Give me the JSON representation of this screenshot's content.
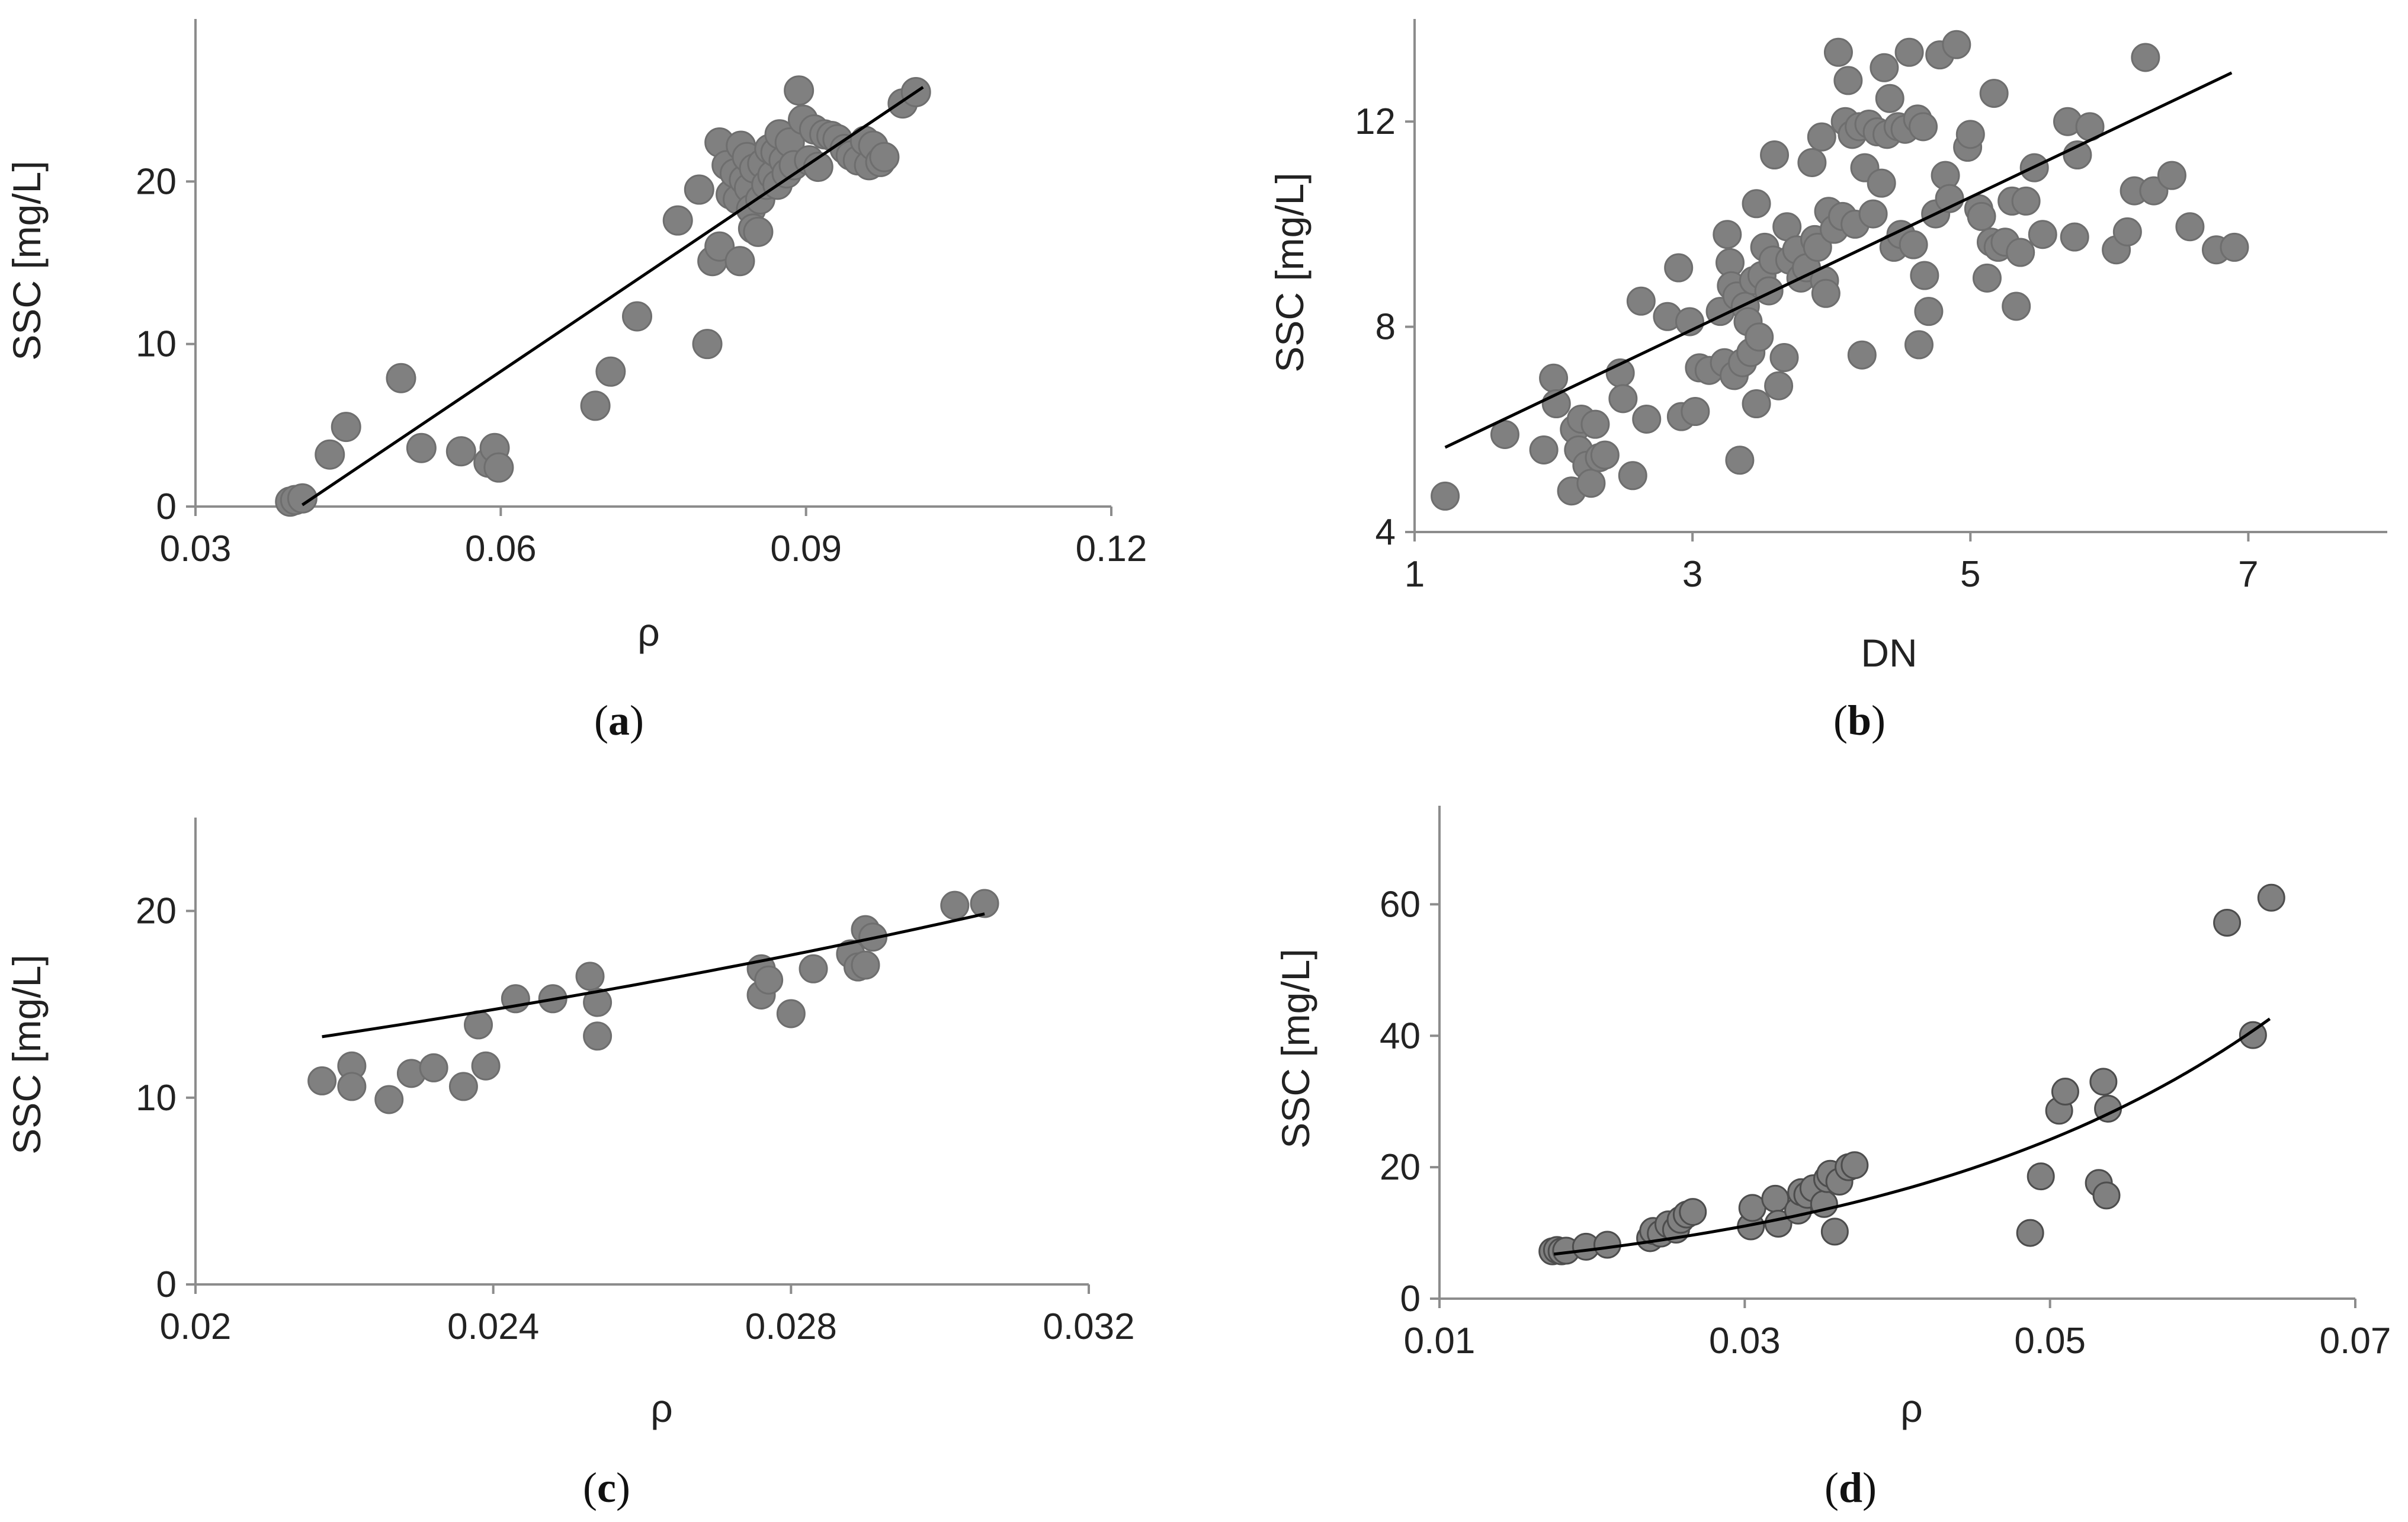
{
  "chart_data": [
    {
      "type": "scatter",
      "panel_label": "(a)",
      "panel_letter": "a",
      "xlabel": "ρ",
      "ylabel": "SSC [mg/L]",
      "xlim": [
        0.03,
        0.12
      ],
      "ylim": [
        0,
        30
      ],
      "xticks": [
        0.03,
        0.06,
        0.09,
        0.12
      ],
      "xtick_labels": [
        "0.03",
        "0.06",
        "0.09",
        "0.12"
      ],
      "yticks": [
        0,
        10,
        20
      ],
      "ytick_labels": [
        "0",
        "10",
        "20"
      ],
      "marker_color": "#808080",
      "marker_edge": "#6e6e6e",
      "fit": {
        "kind": "linear",
        "x": [
          0.0405,
          0.1015
        ],
        "y": [
          0.1,
          25.8
        ]
      },
      "points": [
        [
          0.0393,
          0.3
        ],
        [
          0.0398,
          0.4
        ],
        [
          0.0405,
          0.5
        ],
        [
          0.0432,
          3.2
        ],
        [
          0.0448,
          4.9
        ],
        [
          0.0502,
          7.9
        ],
        [
          0.0522,
          3.6
        ],
        [
          0.0561,
          3.4
        ],
        [
          0.0588,
          2.7
        ],
        [
          0.0594,
          3.6
        ],
        [
          0.0598,
          2.4
        ],
        [
          0.0693,
          6.2
        ],
        [
          0.0708,
          8.3
        ],
        [
          0.0734,
          11.7
        ],
        [
          0.0774,
          17.6
        ],
        [
          0.0795,
          19.5
        ],
        [
          0.0803,
          10.0
        ],
        [
          0.0808,
          15.1
        ],
        [
          0.0815,
          16.0
        ],
        [
          0.0815,
          22.4
        ],
        [
          0.0822,
          21.0
        ],
        [
          0.0826,
          19.2
        ],
        [
          0.083,
          20.5
        ],
        [
          0.0833,
          18.9
        ],
        [
          0.0835,
          15.1
        ],
        [
          0.0836,
          22.2
        ],
        [
          0.0839,
          20.1
        ],
        [
          0.0842,
          21.5
        ],
        [
          0.0844,
          19.6
        ],
        [
          0.0846,
          18.3
        ],
        [
          0.0848,
          17.1
        ],
        [
          0.0849,
          20.8
        ],
        [
          0.0853,
          16.9
        ],
        [
          0.0855,
          18.9
        ],
        [
          0.0857,
          21.1
        ],
        [
          0.0861,
          19.8
        ],
        [
          0.0864,
          22.0
        ],
        [
          0.0867,
          20.4
        ],
        [
          0.087,
          21.8
        ],
        [
          0.0872,
          19.8
        ],
        [
          0.0874,
          22.9
        ],
        [
          0.0878,
          21.3
        ],
        [
          0.0881,
          20.5
        ],
        [
          0.0884,
          22.4
        ],
        [
          0.0888,
          21.0
        ],
        [
          0.0893,
          25.6
        ],
        [
          0.0897,
          23.8
        ],
        [
          0.0903,
          21.3
        ],
        [
          0.0908,
          23.2
        ],
        [
          0.0912,
          20.9
        ],
        [
          0.0918,
          22.9
        ],
        [
          0.0925,
          22.8
        ],
        [
          0.0931,
          22.6
        ],
        [
          0.0938,
          22.0
        ],
        [
          0.0944,
          21.6
        ],
        [
          0.0951,
          21.3
        ],
        [
          0.0958,
          22.5
        ],
        [
          0.0962,
          21.0
        ],
        [
          0.0966,
          22.2
        ],
        [
          0.0973,
          21.2
        ],
        [
          0.0977,
          21.5
        ],
        [
          0.0995,
          24.8
        ],
        [
          0.1008,
          25.5
        ]
      ]
    },
    {
      "type": "scatter",
      "panel_label": "(b)",
      "panel_letter": "b",
      "xlabel": "DN",
      "ylabel": "SSC [mg/L]",
      "xlim": [
        1,
        8
      ],
      "ylim": [
        4,
        14
      ],
      "xticks": [
        1,
        3,
        5,
        7
      ],
      "xtick_labels": [
        "1",
        "3",
        "5",
        "7"
      ],
      "yticks": [
        4,
        8,
        12
      ],
      "ytick_labels": [
        "4",
        "8",
        "12"
      ],
      "marker_color": "#808080",
      "marker_edge": "#6e6e6e",
      "fit": {
        "kind": "linear",
        "x": [
          1.22,
          6.88
        ],
        "y": [
          5.65,
          12.95
        ]
      },
      "points": [
        [
          1.22,
          4.7
        ],
        [
          1.65,
          5.9
        ],
        [
          1.93,
          5.6
        ],
        [
          2.0,
          7.0
        ],
        [
          2.02,
          6.5
        ],
        [
          2.13,
          4.8
        ],
        [
          2.15,
          6.0
        ],
        [
          2.18,
          5.6
        ],
        [
          2.2,
          6.2
        ],
        [
          2.24,
          5.3
        ],
        [
          2.27,
          4.95
        ],
        [
          2.3,
          6.1
        ],
        [
          2.33,
          5.45
        ],
        [
          2.37,
          5.5
        ],
        [
          2.48,
          7.1
        ],
        [
          2.5,
          6.6
        ],
        [
          2.57,
          5.1
        ],
        [
          2.63,
          8.5
        ],
        [
          2.67,
          6.2
        ],
        [
          2.82,
          8.2
        ],
        [
          2.9,
          9.15
        ],
        [
          2.92,
          6.25
        ],
        [
          2.98,
          8.1
        ],
        [
          3.02,
          6.35
        ],
        [
          3.05,
          7.2
        ],
        [
          3.12,
          7.15
        ],
        [
          3.2,
          8.3
        ],
        [
          3.23,
          7.3
        ],
        [
          3.25,
          9.8
        ],
        [
          3.27,
          9.25
        ],
        [
          3.28,
          8.8
        ],
        [
          3.3,
          7.05
        ],
        [
          3.32,
          8.6
        ],
        [
          3.34,
          5.4
        ],
        [
          3.36,
          7.3
        ],
        [
          3.38,
          8.4
        ],
        [
          3.4,
          8.1
        ],
        [
          3.42,
          7.5
        ],
        [
          3.44,
          8.9
        ],
        [
          3.46,
          10.4
        ],
        [
          3.46,
          6.5
        ],
        [
          3.48,
          7.8
        ],
        [
          3.5,
          9.0
        ],
        [
          3.52,
          9.55
        ],
        [
          3.55,
          8.7
        ],
        [
          3.58,
          9.3
        ],
        [
          3.59,
          11.35
        ],
        [
          3.62,
          6.85
        ],
        [
          3.66,
          7.4
        ],
        [
          3.68,
          9.95
        ],
        [
          3.7,
          9.3
        ],
        [
          3.75,
          9.5
        ],
        [
          3.78,
          8.95
        ],
        [
          3.82,
          9.15
        ],
        [
          3.86,
          11.2
        ],
        [
          3.88,
          9.7
        ],
        [
          3.9,
          9.55
        ],
        [
          3.93,
          11.7
        ],
        [
          3.95,
          8.9
        ],
        [
          3.96,
          8.65
        ],
        [
          3.98,
          10.25
        ],
        [
          4.02,
          9.9
        ],
        [
          4.05,
          13.35
        ],
        [
          4.08,
          10.15
        ],
        [
          4.1,
          12.0
        ],
        [
          4.12,
          12.8
        ],
        [
          4.15,
          11.75
        ],
        [
          4.17,
          10.0
        ],
        [
          4.2,
          11.9
        ],
        [
          4.22,
          7.45
        ],
        [
          4.24,
          11.1
        ],
        [
          4.27,
          11.95
        ],
        [
          4.3,
          10.2
        ],
        [
          4.33,
          11.8
        ],
        [
          4.36,
          10.8
        ],
        [
          4.38,
          13.05
        ],
        [
          4.4,
          11.75
        ],
        [
          4.42,
          12.45
        ],
        [
          4.45,
          9.55
        ],
        [
          4.48,
          11.9
        ],
        [
          4.5,
          9.8
        ],
        [
          4.53,
          11.85
        ],
        [
          4.56,
          13.35
        ],
        [
          4.59,
          9.6
        ],
        [
          4.62,
          12.05
        ],
        [
          4.63,
          7.65
        ],
        [
          4.66,
          11.9
        ],
        [
          4.67,
          9.0
        ],
        [
          4.7,
          8.3
        ],
        [
          4.75,
          10.2
        ],
        [
          4.78,
          13.3
        ],
        [
          4.82,
          10.95
        ],
        [
          4.85,
          10.5
        ],
        [
          4.9,
          13.5
        ],
        [
          4.98,
          11.5
        ],
        [
          5.0,
          11.75
        ],
        [
          5.06,
          10.3
        ],
        [
          5.08,
          10.15
        ],
        [
          5.12,
          8.95
        ],
        [
          5.15,
          9.65
        ],
        [
          5.17,
          12.55
        ],
        [
          5.2,
          9.55
        ],
        [
          5.25,
          9.65
        ],
        [
          5.3,
          10.45
        ],
        [
          5.33,
          8.4
        ],
        [
          5.36,
          9.45
        ],
        [
          5.4,
          10.45
        ],
        [
          5.46,
          11.1
        ],
        [
          5.52,
          9.8
        ],
        [
          5.7,
          12.0
        ],
        [
          5.75,
          9.75
        ],
        [
          5.77,
          11.35
        ],
        [
          5.86,
          11.9
        ],
        [
          6.05,
          9.5
        ],
        [
          6.13,
          9.85
        ],
        [
          6.18,
          10.65
        ],
        [
          6.26,
          13.25
        ],
        [
          6.32,
          10.65
        ],
        [
          6.45,
          10.95
        ],
        [
          6.58,
          9.95
        ],
        [
          6.77,
          9.5
        ],
        [
          6.9,
          9.55
        ]
      ]
    },
    {
      "type": "scatter",
      "panel_label": "(c)",
      "panel_letter": "c",
      "xlabel": "ρ",
      "ylabel": "SSC [mg/L]",
      "xlim": [
        0.02,
        0.032
      ],
      "ylim": [
        0,
        25
      ],
      "xticks": [
        0.02,
        0.024,
        0.028,
        0.032
      ],
      "xtick_labels": [
        "0.02",
        "0.024",
        "0.028",
        "0.032"
      ],
      "yticks": [
        0,
        10,
        20
      ],
      "ytick_labels": [
        "0",
        "10",
        "20"
      ],
      "marker_color": "#808080",
      "marker_edge": "#6e6e6e",
      "fit": {
        "kind": "exponential",
        "a": 4.97,
        "b": 45.24,
        "x_range": [
          0.0217,
          0.0306
        ]
      },
      "points": [
        [
          0.0217,
          10.9
        ],
        [
          0.0221,
          11.7
        ],
        [
          0.0221,
          10.6
        ],
        [
          0.0226,
          9.9
        ],
        [
          0.0229,
          11.3
        ],
        [
          0.0232,
          11.6
        ],
        [
          0.0236,
          10.6
        ],
        [
          0.0238,
          13.9
        ],
        [
          0.0239,
          11.7
        ],
        [
          0.0243,
          15.3
        ],
        [
          0.0248,
          15.3
        ],
        [
          0.0253,
          16.5
        ],
        [
          0.0254,
          15.1
        ],
        [
          0.0254,
          13.3
        ],
        [
          0.0276,
          16.9
        ],
        [
          0.0276,
          15.5
        ],
        [
          0.0277,
          16.3
        ],
        [
          0.028,
          14.5
        ],
        [
          0.0283,
          16.9
        ],
        [
          0.0288,
          17.7
        ],
        [
          0.0289,
          17.0
        ],
        [
          0.029,
          17.1
        ],
        [
          0.029,
          19.0
        ],
        [
          0.0291,
          18.6
        ],
        [
          0.0302,
          20.3
        ],
        [
          0.0306,
          20.4
        ]
      ]
    },
    {
      "type": "scatter",
      "panel_label": "(d)",
      "panel_letter": "d",
      "xlabel": "ρ",
      "ylabel": "SSC [mg/L]",
      "xlim": [
        0.01,
        0.07
      ],
      "ylim": [
        0,
        75
      ],
      "xticks": [
        0.01,
        0.03,
        0.05,
        0.07
      ],
      "xtick_labels": [
        "0.01",
        "0.03",
        "0.05",
        "0.07"
      ],
      "yticks": [
        0,
        20,
        40,
        60
      ],
      "ytick_labels": [
        "0",
        "20",
        "40",
        "60"
      ],
      "marker_color": "#808080",
      "marker_edge": "#4d4d4d",
      "fit": {
        "kind": "exponential",
        "a": 3.41,
        "b": 39.2,
        "x_range": [
          0.0175,
          0.0644
        ]
      },
      "points": [
        [
          0.0174,
          7.2
        ],
        [
          0.0177,
          7.4
        ],
        [
          0.018,
          7.2
        ],
        [
          0.0183,
          7.3
        ],
        [
          0.0196,
          7.9
        ],
        [
          0.021,
          8.2
        ],
        [
          0.0238,
          9.2
        ],
        [
          0.024,
          10.3
        ],
        [
          0.0245,
          9.9
        ],
        [
          0.025,
          11.3
        ],
        [
          0.0255,
          10.5
        ],
        [
          0.0258,
          12.0
        ],
        [
          0.0262,
          12.8
        ],
        [
          0.0266,
          13.2
        ],
        [
          0.0304,
          11.0
        ],
        [
          0.0305,
          13.8
        ],
        [
          0.032,
          15.2
        ],
        [
          0.0322,
          11.4
        ],
        [
          0.0335,
          13.4
        ],
        [
          0.0337,
          16.2
        ],
        [
          0.0341,
          15.8
        ],
        [
          0.0345,
          16.8
        ],
        [
          0.0352,
          14.4
        ],
        [
          0.0354,
          18.2
        ],
        [
          0.0356,
          19.0
        ],
        [
          0.0359,
          10.2
        ],
        [
          0.0362,
          17.8
        ],
        [
          0.0368,
          20.0
        ],
        [
          0.0372,
          20.3
        ],
        [
          0.0487,
          10.0
        ],
        [
          0.0494,
          18.6
        ],
        [
          0.0506,
          28.6
        ],
        [
          0.051,
          31.5
        ],
        [
          0.0532,
          17.6
        ],
        [
          0.0535,
          33.0
        ],
        [
          0.0537,
          15.7
        ],
        [
          0.0538,
          28.9
        ],
        [
          0.0616,
          57.2
        ],
        [
          0.0633,
          40.1
        ],
        [
          0.0645,
          61.0
        ]
      ]
    }
  ]
}
